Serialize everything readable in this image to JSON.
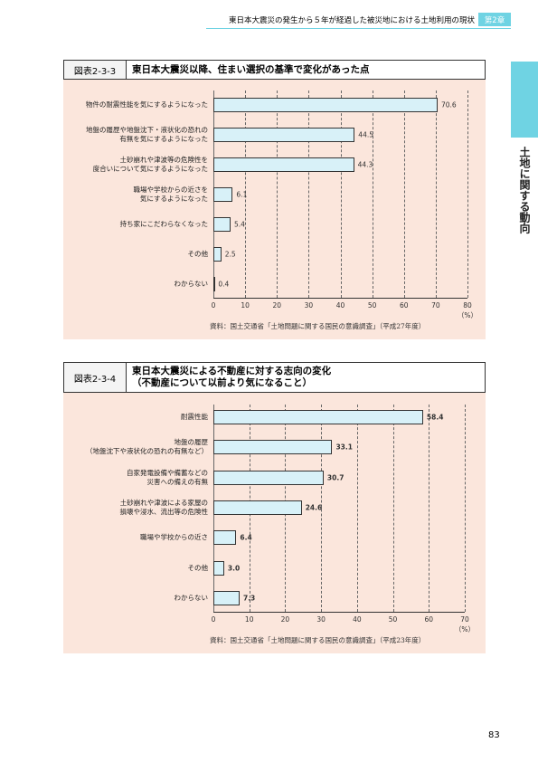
{
  "header": {
    "title": "東日本大震災の発生から５年が経過した被災地における土地利用の現状",
    "chapter": "第2章"
  },
  "side_tab": "土地に関する動向",
  "page_number": "83",
  "chart_data": [
    {
      "type": "bar",
      "figure_label": "図表2-3-3",
      "title": "東日本大震災以降、住まい選択の基準で変化があった点",
      "categories": [
        "物件の耐震性能を気にするようになった",
        "地盤の履歴や地盤沈下・液状化の恐れの\n有無を気にするようになった",
        "土砂崩れや津波等の危険性を\n度合いについて気にするようになった",
        "職場や学校からの近さを\n気にするようになった",
        "持ち家にこだわらなくなった",
        "その他",
        "わからない"
      ],
      "values": [
        70.6,
        44.5,
        44.3,
        6.1,
        5.4,
        2.5,
        0.4
      ],
      "xlim": [
        0,
        80
      ],
      "xticks": [
        0,
        10,
        20,
        30,
        40,
        50,
        60,
        70,
        80
      ],
      "unit": "（%）",
      "source": "資料：国土交通省「土地問題に関する国民の意識調査」（平成27年度）",
      "color": "#d8f1f8"
    },
    {
      "type": "bar",
      "figure_label": "図表2-3-4",
      "title": "東日本大震災による不動産に対する志向の変化\n（不動産について以前より気になること）",
      "categories": [
        "耐震性能",
        "地盤の履歴\n（地盤沈下や液状化の恐れの有無など）",
        "自家発電設備や備蓄などの\n災害への備えの有無",
        "土砂崩れや津波による家屋の\n損壊や浸水、流出等の危険性",
        "職場や学校からの近さ",
        "その他",
        "わからない"
      ],
      "values": [
        58.4,
        33.1,
        30.7,
        24.6,
        6.4,
        3.0,
        7.3
      ],
      "value_labels": [
        "58.4",
        "33.1",
        "30.7",
        "24.6",
        "6.4",
        "3.0",
        "7.3"
      ],
      "xlim": [
        0,
        70
      ],
      "xticks": [
        0,
        10,
        20,
        30,
        40,
        50,
        60,
        70
      ],
      "unit": "（%）",
      "source": "資料：国土交通省「土地問題に関する国民の意識調査」（平成23年度）",
      "color": "#d8f1f8"
    }
  ]
}
